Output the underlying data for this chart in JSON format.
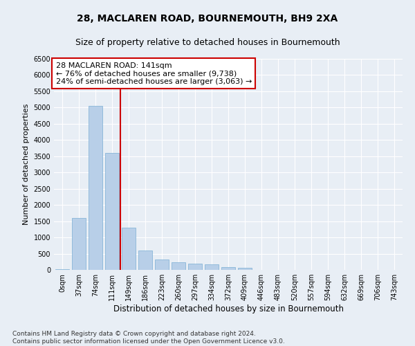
{
  "title": "28, MACLAREN ROAD, BOURNEMOUTH, BH9 2XA",
  "subtitle": "Size of property relative to detached houses in Bournemouth",
  "xlabel": "Distribution of detached houses by size in Bournemouth",
  "ylabel": "Number of detached properties",
  "categories": [
    "0sqm",
    "37sqm",
    "74sqm",
    "111sqm",
    "149sqm",
    "186sqm",
    "223sqm",
    "260sqm",
    "297sqm",
    "334sqm",
    "372sqm",
    "409sqm",
    "446sqm",
    "483sqm",
    "520sqm",
    "557sqm",
    "594sqm",
    "632sqm",
    "669sqm",
    "706sqm",
    "743sqm"
  ],
  "values": [
    30,
    1600,
    5050,
    3600,
    1300,
    600,
    320,
    230,
    185,
    160,
    90,
    60,
    0,
    0,
    0,
    0,
    0,
    0,
    0,
    0,
    0
  ],
  "bar_color": "#b8cfe8",
  "bar_edge_color": "#7aaed4",
  "vline_color": "#cc0000",
  "annotation_text": "28 MACLAREN ROAD: 141sqm\n← 76% of detached houses are smaller (9,738)\n24% of semi-detached houses are larger (3,063) →",
  "annotation_box_color": "#ffffff",
  "annotation_box_edge": "#cc0000",
  "ylim": [
    0,
    6500
  ],
  "yticks": [
    0,
    500,
    1000,
    1500,
    2000,
    2500,
    3000,
    3500,
    4000,
    4500,
    5000,
    5500,
    6000,
    6500
  ],
  "bg_color": "#e8eef5",
  "plot_bg": "#e8eef5",
  "footer": "Contains HM Land Registry data © Crown copyright and database right 2024.\nContains public sector information licensed under the Open Government Licence v3.0.",
  "title_fontsize": 10,
  "subtitle_fontsize": 9,
  "xlabel_fontsize": 8.5,
  "ylabel_fontsize": 8,
  "tick_fontsize": 7,
  "annot_fontsize": 8,
  "footer_fontsize": 6.5
}
